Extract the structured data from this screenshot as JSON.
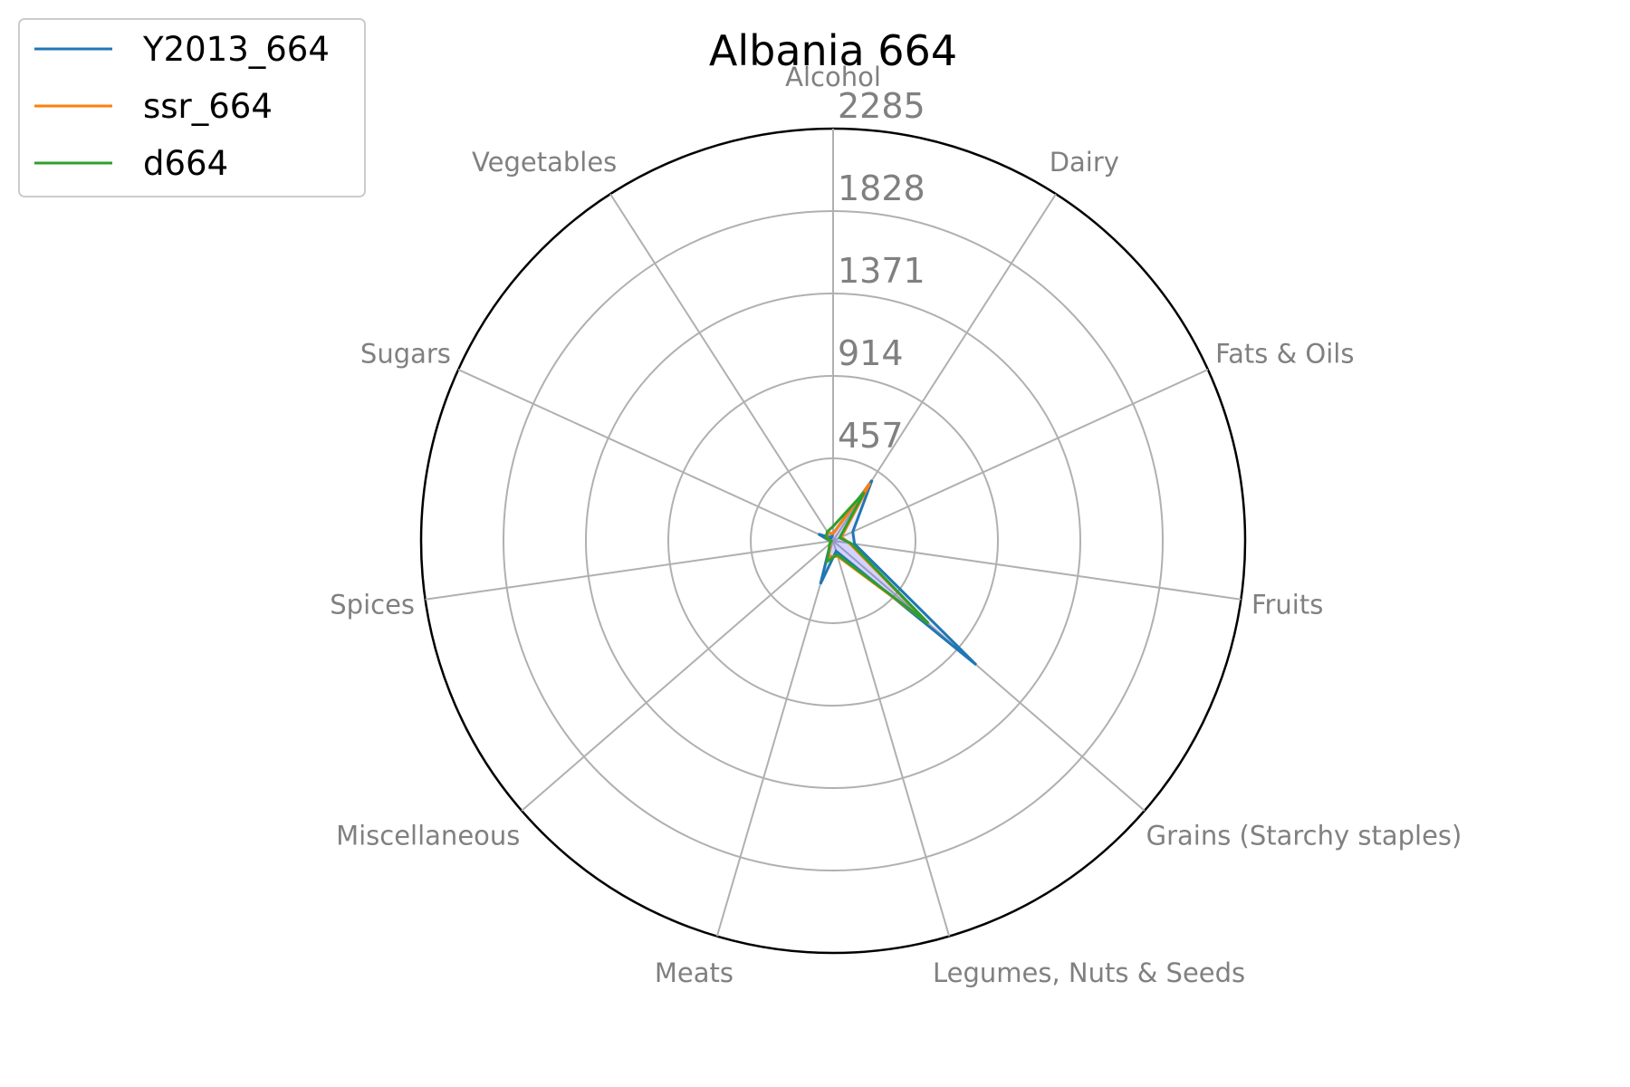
{
  "chart_data": {
    "type": "radar",
    "title": "Albania 664",
    "categories": [
      "Alcohol",
      "Dairy",
      "Fats & Oils",
      "Fruits",
      "Grains (Starchy staples)",
      "Legumes, Nuts & Seeds",
      "Meats",
      "Miscellaneous",
      "Spices",
      "Sugars",
      "Vegetables"
    ],
    "radial_ticks": [
      457,
      914,
      1371,
      1828,
      2285
    ],
    "radial_tick_labels": [
      "457",
      "914",
      "1371",
      "1828",
      "2285"
    ],
    "rlim": [
      0,
      2285
    ],
    "grid": true,
    "legend_position": "top-left",
    "series": [
      {
        "name": "Y2013_664",
        "color": "#1f77b4",
        "values": [
          40,
          400,
          120,
          120,
          1050,
          60,
          250,
          20,
          15,
          90,
          20
        ]
      },
      {
        "name": "ssr_664",
        "color": "#ff7f0e",
        "values": [
          40,
          380,
          50,
          90,
          700,
          90,
          90,
          20,
          15,
          40,
          55
        ]
      },
      {
        "name": "d664",
        "color": "#2ca02c",
        "values": [
          80,
          320,
          40,
          100,
          700,
          80,
          120,
          25,
          10,
          45,
          60
        ]
      }
    ],
    "fill_color": "#6666ff"
  }
}
